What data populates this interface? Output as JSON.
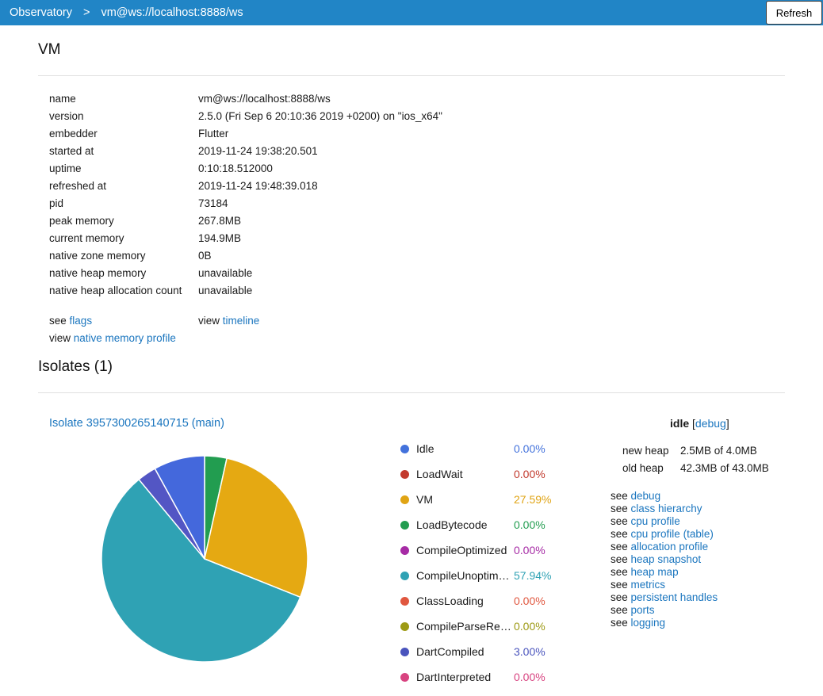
{
  "colors": {
    "nav_bar": "#2185C6",
    "link": "#1B76BF"
  },
  "nav": {
    "app_title": "Observatory",
    "separator": ">",
    "current_page": "vm@ws://localhost:8888/ws",
    "refresh_label": "Refresh"
  },
  "vm_section": {
    "title": "VM",
    "properties": [
      {
        "label": "name",
        "value": "vm@ws://localhost:8888/ws"
      },
      {
        "label": "version",
        "value": "2.5.0 (Fri Sep 6 20:10:36 2019 +0200) on \"ios_x64\""
      },
      {
        "label": "embedder",
        "value": "Flutter"
      },
      {
        "label": "started at",
        "value": "2019-11-24 19:38:20.501"
      },
      {
        "label": "uptime",
        "value": "0:10:18.512000"
      },
      {
        "label": "refreshed at",
        "value": "2019-11-24 19:48:39.018"
      },
      {
        "label": "pid",
        "value": "73184"
      },
      {
        "label": "peak memory",
        "value": "267.8MB"
      },
      {
        "label": "current memory",
        "value": "194.9MB"
      },
      {
        "label": "native zone memory",
        "value": "0B"
      },
      {
        "label": "native heap memory",
        "value": "unavailable"
      },
      {
        "label": "native heap allocation count",
        "value": "unavailable"
      }
    ],
    "links_row": {
      "see_prefix": "see",
      "flags_link": "flags",
      "view_prefix": "view",
      "timeline_link": "timeline",
      "native_memory_profile_link": "native memory profile"
    }
  },
  "isolates_section": {
    "title": "Isolates (1)",
    "isolate_link": "Isolate 3957300265140715 (main)",
    "status": {
      "state": "idle",
      "bracket_open": "[",
      "debug_link": "debug",
      "bracket_close": "]"
    },
    "heap": [
      {
        "label": "new heap",
        "value": "2.5MB of 4.0MB"
      },
      {
        "label": "old heap",
        "value": "42.3MB of 43.0MB"
      }
    ],
    "see_prefix": "see",
    "see_links": [
      "debug",
      "class hierarchy",
      "cpu profile",
      "cpu profile (table)",
      "allocation profile",
      "heap snapshot",
      "heap map",
      "metrics",
      "persistent handles",
      "ports",
      "logging"
    ]
  },
  "chart_data": {
    "type": "pie",
    "title": "",
    "unit": "percent",
    "legend_position": "right",
    "legend": [
      {
        "label": "Idle",
        "value": 0.0,
        "display_value": "0.00%",
        "color": "#4372DC"
      },
      {
        "label": "LoadWait",
        "value": 0.0,
        "display_value": "0.00%",
        "color": "#C23A2E"
      },
      {
        "label": "VM",
        "value": 27.59,
        "display_value": "27.59%",
        "color": "#E0A414"
      },
      {
        "label": "LoadBytecode",
        "value": 0.0,
        "display_value": "0.00%",
        "color": "#229D50"
      },
      {
        "label": "CompileOptimized",
        "value": 0.0,
        "display_value": "0.00%",
        "color": "#A62BA5"
      },
      {
        "label": "CompileUnoptim…",
        "value": 57.94,
        "display_value": "57.94%",
        "color": "#2FA2B4"
      },
      {
        "label": "ClassLoading",
        "value": 0.0,
        "display_value": "0.00%",
        "color": "#E0573F"
      },
      {
        "label": "CompileParseRe…",
        "value": 0.0,
        "display_value": "0.00%",
        "color": "#9D9A14"
      },
      {
        "label": "DartCompiled",
        "value": 3.0,
        "display_value": "3.00%",
        "color": "#4A54BD"
      },
      {
        "label": "DartInterpreted",
        "value": 0.0,
        "display_value": "0.00%",
        "color": "#D84380"
      }
    ],
    "pie_segments": [
      {
        "label": "unlabeled-green",
        "value": 3.47,
        "color": "#229D50"
      },
      {
        "label": "VM",
        "value": 27.59,
        "color": "#E5A912"
      },
      {
        "label": "CompileUnoptimized",
        "value": 57.94,
        "color": "#2FA2B4"
      },
      {
        "label": "DartCompiled",
        "value": 3.0,
        "color": "#5356C4"
      },
      {
        "label": "unlabeled-blue",
        "value": 8.0,
        "color": "#4468DC"
      }
    ]
  }
}
